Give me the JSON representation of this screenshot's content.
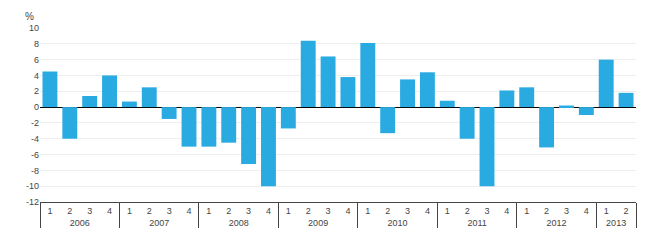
{
  "chart_data": {
    "type": "bar",
    "categories": [
      [
        "2006",
        "1"
      ],
      [
        "2006",
        "2"
      ],
      [
        "2006",
        "3"
      ],
      [
        "2006",
        "4"
      ],
      [
        "2007",
        "1"
      ],
      [
        "2007",
        "2"
      ],
      [
        "2007",
        "3"
      ],
      [
        "2007",
        "4"
      ],
      [
        "2008",
        "1"
      ],
      [
        "2008",
        "2"
      ],
      [
        "2008",
        "3"
      ],
      [
        "2008",
        "4"
      ],
      [
        "2009",
        "1"
      ],
      [
        "2009",
        "2"
      ],
      [
        "2009",
        "3"
      ],
      [
        "2009",
        "4"
      ],
      [
        "2010",
        "1"
      ],
      [
        "2010",
        "2"
      ],
      [
        "2010",
        "3"
      ],
      [
        "2010",
        "4"
      ],
      [
        "2011",
        "1"
      ],
      [
        "2011",
        "2"
      ],
      [
        "2011",
        "3"
      ],
      [
        "2011",
        "4"
      ],
      [
        "2012",
        "1"
      ],
      [
        "2012",
        "2"
      ],
      [
        "2012",
        "3"
      ],
      [
        "2012",
        "4"
      ],
      [
        "2013",
        "1"
      ],
      [
        "2013",
        "2"
      ]
    ],
    "values": [
      4.5,
      -4.0,
      1.4,
      4.0,
      0.7,
      2.5,
      -1.5,
      -5.0,
      -5.0,
      -4.5,
      -7.2,
      -10.0,
      -2.7,
      8.4,
      6.4,
      3.8,
      8.1,
      -3.3,
      3.5,
      4.4,
      0.8,
      -4.0,
      -10.0,
      2.1,
      2.5,
      -5.1,
      0.2,
      -1.0,
      6.0,
      1.8
    ],
    "color": "#29abe2",
    "ylabel": "%",
    "ylim": [
      -12,
      10
    ],
    "yticks": [
      -12,
      -10,
      -8,
      -6,
      -4,
      -2,
      0,
      2,
      4,
      6,
      8,
      10
    ],
    "grid": true
  }
}
